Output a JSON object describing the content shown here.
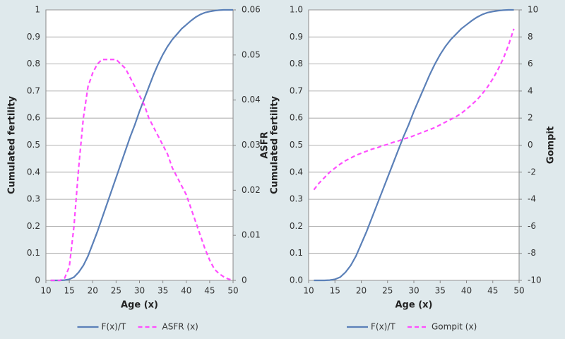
{
  "chart_data": [
    {
      "type": "line",
      "x": [
        11,
        12,
        13,
        14,
        15,
        16,
        17,
        18,
        19,
        20,
        21,
        22,
        23,
        24,
        25,
        26,
        27,
        28,
        29,
        30,
        31,
        32,
        33,
        34,
        35,
        36,
        37,
        38,
        39,
        40,
        41,
        42,
        43,
        44,
        45,
        46,
        47,
        48,
        49,
        50
      ],
      "xlim": [
        10,
        50
      ],
      "xticks": [
        10,
        15,
        20,
        25,
        30,
        35,
        40,
        45,
        50
      ],
      "ylim": [
        0,
        1
      ],
      "yticks": [
        0,
        0.1,
        0.2,
        0.3,
        0.4,
        0.5,
        0.6,
        0.7,
        0.8,
        0.9,
        1
      ],
      "y2lim": [
        0,
        0.06
      ],
      "y2ticks": [
        0,
        0.01,
        0.02,
        0.03,
        0.04,
        0.05,
        0.06
      ],
      "x_label": "Age (x)",
      "y_label": "Cumulated fertility",
      "y2_label": "ASFR",
      "grid": true,
      "series": [
        {
          "name": "F(x)/T",
          "color": "#5b80b8",
          "dash": false,
          "values": [
            0,
            0,
            0,
            0.001,
            0.004,
            0.012,
            0.03,
            0.055,
            0.09,
            0.135,
            0.18,
            0.23,
            0.28,
            0.33,
            0.38,
            0.43,
            0.48,
            0.53,
            0.575,
            0.625,
            0.67,
            0.715,
            0.76,
            0.8,
            0.835,
            0.865,
            0.89,
            0.91,
            0.93,
            0.945,
            0.96,
            0.973,
            0.983,
            0.99,
            0.994,
            0.997,
            0.999,
            1,
            1,
            1
          ]
        },
        {
          "name": "ASFR (x)",
          "color": "#ff4dff",
          "dash": true,
          "axis": "y2",
          "values": [
            0,
            0,
            0,
            0.0005,
            0.003,
            0.012,
            0.025,
            0.036,
            0.043,
            0.046,
            0.048,
            0.049,
            0.049,
            0.049,
            0.049,
            0.048,
            0.047,
            0.045,
            0.043,
            0.041,
            0.039,
            0.036,
            0.034,
            0.032,
            0.03,
            0.028,
            0.025,
            0.023,
            0.021,
            0.019,
            0.016,
            0.013,
            0.01,
            0.007,
            0.0045,
            0.0025,
            0.0015,
            0.0008,
            0.0003,
            0
          ]
        }
      ]
    },
    {
      "type": "line",
      "x": [
        11,
        12,
        13,
        14,
        15,
        16,
        17,
        18,
        19,
        20,
        21,
        22,
        23,
        24,
        25,
        26,
        27,
        28,
        29,
        30,
        31,
        32,
        33,
        34,
        35,
        36,
        37,
        38,
        39,
        40,
        41,
        42,
        43,
        44,
        45,
        46,
        47,
        48,
        49
      ],
      "xlim": [
        10,
        50
      ],
      "xticks": [
        10,
        15,
        20,
        25,
        30,
        35,
        40,
        45,
        50
      ],
      "ylim": [
        0,
        1
      ],
      "yticks": [
        {
          "value": 0,
          "label": "0.0"
        },
        0.1,
        0.2,
        0.3,
        0.4,
        0.5,
        0.6,
        0.7,
        0.8,
        0.9,
        {
          "value": 1,
          "label": "1.0"
        }
      ],
      "y2lim": [
        -10,
        10
      ],
      "y2ticks": [
        -10,
        -8,
        -6,
        -4,
        -2,
        0,
        2,
        4,
        6,
        8,
        10
      ],
      "x_label": "Age (x)",
      "y_label": "Cumulated fertility",
      "y2_label": "Gompit",
      "grid": true,
      "series": [
        {
          "name": "F(x)/T",
          "color": "#5b80b8",
          "dash": false,
          "values": [
            0,
            0,
            0,
            0.001,
            0.004,
            0.012,
            0.03,
            0.055,
            0.09,
            0.135,
            0.18,
            0.23,
            0.28,
            0.33,
            0.38,
            0.43,
            0.48,
            0.53,
            0.575,
            0.625,
            0.67,
            0.715,
            0.76,
            0.8,
            0.835,
            0.865,
            0.89,
            0.91,
            0.93,
            0.945,
            0.96,
            0.973,
            0.983,
            0.99,
            0.994,
            0.997,
            0.999,
            1,
            1
          ]
        },
        {
          "name": "Gompit (x)",
          "color": "#ff4dff",
          "dash": true,
          "axis": "y2",
          "values": [
            -3.3,
            -2.8,
            -2.4,
            -2.0,
            -1.7,
            -1.4,
            -1.15,
            -0.95,
            -0.75,
            -0.6,
            -0.45,
            -0.3,
            -0.2,
            -0.05,
            0.05,
            0.2,
            0.3,
            0.45,
            0.55,
            0.7,
            0.85,
            1,
            1.15,
            1.3,
            1.5,
            1.7,
            1.9,
            2.1,
            2.35,
            2.65,
            3,
            3.35,
            3.8,
            4.3,
            4.9,
            5.6,
            6.4,
            7.4,
            8.6
          ]
        }
      ]
    }
  ]
}
